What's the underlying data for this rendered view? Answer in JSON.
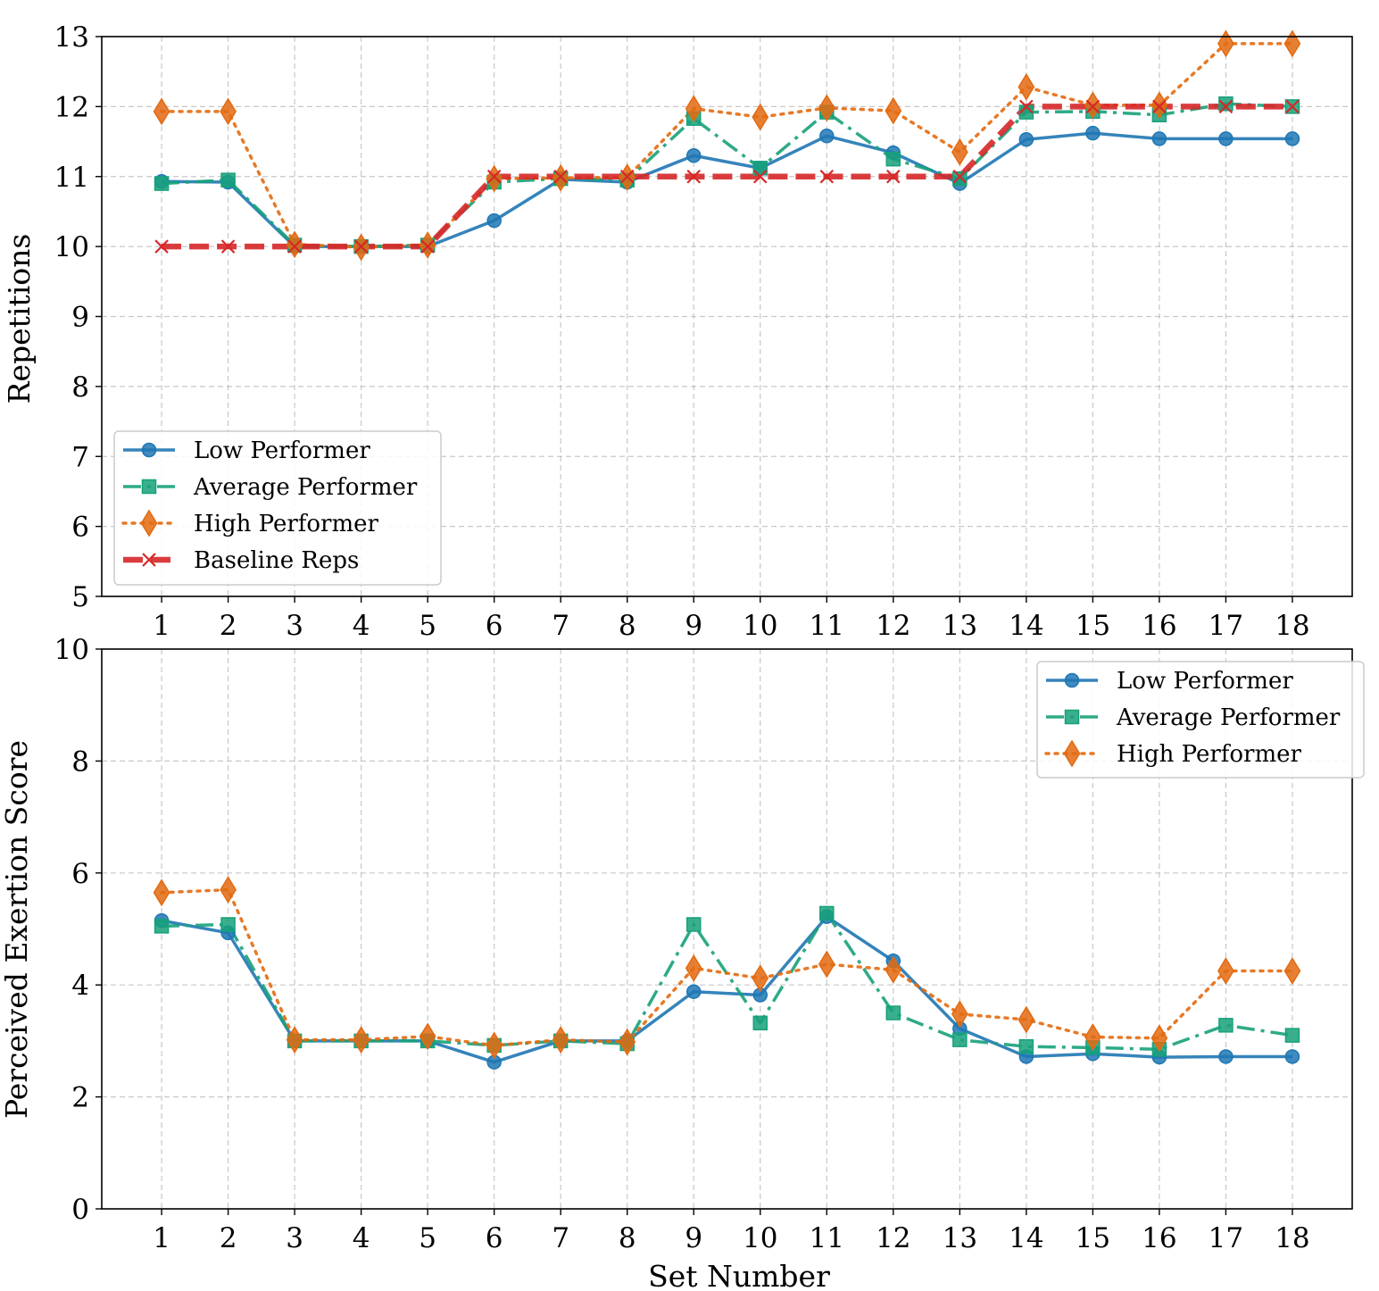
{
  "chart_data": [
    {
      "type": "line",
      "xlabel": "",
      "ylabel": "Repetitions",
      "x": [
        1,
        2,
        3,
        4,
        5,
        6,
        7,
        8,
        9,
        10,
        11,
        12,
        13,
        14,
        15,
        16,
        17,
        18
      ],
      "xticks": [
        "1",
        "2",
        "3",
        "4",
        "5",
        "6",
        "7",
        "8",
        "9",
        "10",
        "11",
        "12",
        "13",
        "14",
        "15",
        "16",
        "17",
        "18"
      ],
      "xlim": [
        0.1,
        18.9
      ],
      "ylim": [
        5,
        13
      ],
      "yticks": [
        "5",
        "6",
        "7",
        "8",
        "9",
        "10",
        "11",
        "12",
        "13"
      ],
      "grid": true,
      "legend_position": "lower-left",
      "series": [
        {
          "name": "Low Performer",
          "color": "#1f77b4",
          "marker": "circle",
          "linestyle": "solid",
          "values": [
            10.93,
            10.92,
            10.0,
            10.0,
            10.0,
            10.37,
            10.96,
            10.92,
            11.3,
            11.12,
            11.58,
            11.34,
            10.9,
            11.53,
            11.62,
            11.54,
            11.54,
            11.54
          ]
        },
        {
          "name": "Average Performer",
          "color": "#17a17a",
          "marker": "square",
          "linestyle": "dashdot",
          "values": [
            10.9,
            10.95,
            10.02,
            10.0,
            10.02,
            10.92,
            10.97,
            10.95,
            11.83,
            11.12,
            11.92,
            11.25,
            10.97,
            11.92,
            11.93,
            11.88,
            12.04,
            12.0
          ]
        },
        {
          "name": "High Performer",
          "color": "#e36a10",
          "marker": "diamond",
          "linestyle": "dotted",
          "values": [
            11.93,
            11.93,
            10.03,
            9.99,
            10.02,
            10.97,
            10.98,
            10.99,
            11.97,
            11.85,
            11.98,
            11.94,
            11.35,
            12.28,
            12.02,
            12.02,
            12.9,
            12.9
          ]
        },
        {
          "name": "Baseline Reps",
          "color": "#d62728",
          "marker": "x",
          "linestyle": "dashed",
          "values": [
            10,
            10,
            10,
            10,
            10,
            11,
            11,
            11,
            11,
            11,
            11,
            11,
            11,
            12,
            12,
            12,
            12,
            12
          ]
        }
      ]
    },
    {
      "type": "line",
      "xlabel": "Set Number",
      "ylabel": "Perceived Exertion Score",
      "x": [
        1,
        2,
        3,
        4,
        5,
        6,
        7,
        8,
        9,
        10,
        11,
        12,
        13,
        14,
        15,
        16,
        17,
        18
      ],
      "xticks": [
        "1",
        "2",
        "3",
        "4",
        "5",
        "6",
        "7",
        "8",
        "9",
        "10",
        "11",
        "12",
        "13",
        "14",
        "15",
        "16",
        "17",
        "18"
      ],
      "xlim": [
        0.1,
        18.9
      ],
      "ylim": [
        0,
        10
      ],
      "yticks": [
        "0",
        "2",
        "4",
        "6",
        "8",
        "10"
      ],
      "grid": true,
      "legend_position": "upper-right",
      "series": [
        {
          "name": "Low Performer",
          "color": "#1f77b4",
          "marker": "circle",
          "linestyle": "solid",
          "values": [
            5.15,
            4.93,
            3.0,
            3.0,
            3.0,
            2.62,
            3.0,
            3.0,
            3.88,
            3.82,
            5.22,
            4.43,
            3.22,
            2.72,
            2.77,
            2.71,
            2.72,
            2.72
          ]
        },
        {
          "name": "Average Performer",
          "color": "#17a17a",
          "marker": "square",
          "linestyle": "dashdot",
          "values": [
            5.05,
            5.08,
            3.0,
            3.0,
            3.0,
            2.92,
            3.0,
            2.95,
            5.08,
            3.32,
            5.28,
            3.5,
            3.02,
            2.9,
            2.88,
            2.85,
            3.28,
            3.1
          ]
        },
        {
          "name": "High Performer",
          "color": "#e36a10",
          "marker": "diamond",
          "linestyle": "dotted",
          "values": [
            5.65,
            5.7,
            3.02,
            3.02,
            3.08,
            2.92,
            3.02,
            2.98,
            4.3,
            4.12,
            4.37,
            4.27,
            3.48,
            3.38,
            3.07,
            3.05,
            4.25,
            4.25
          ]
        }
      ]
    }
  ]
}
